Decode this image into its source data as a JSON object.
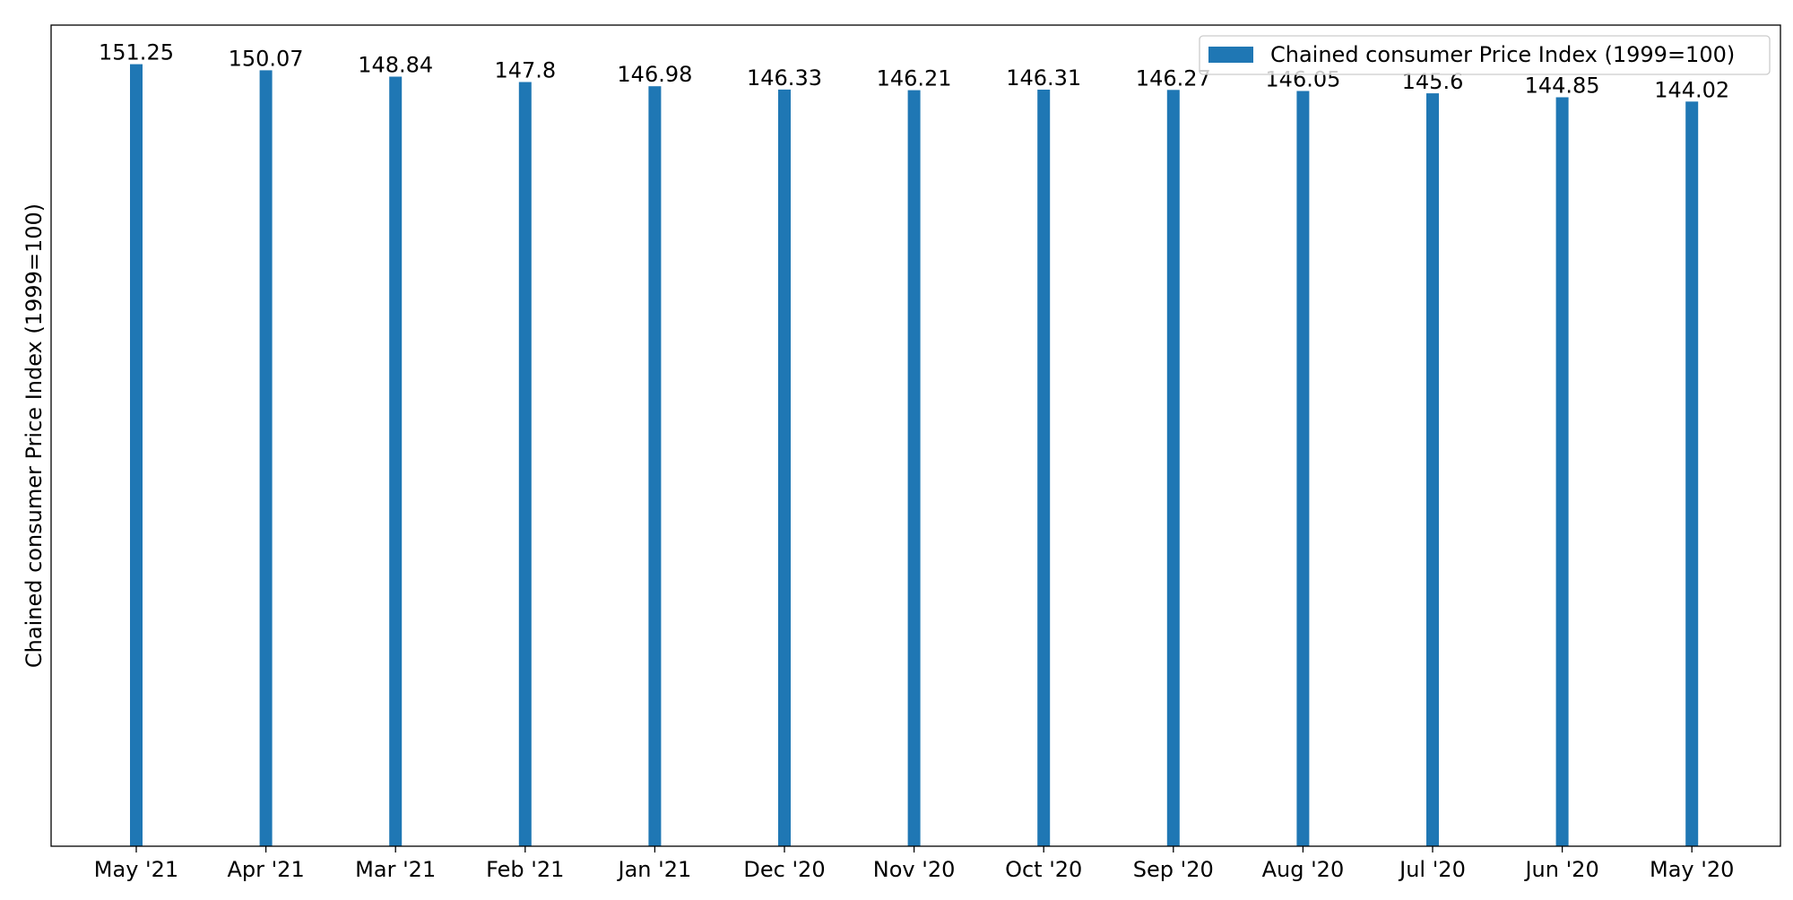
{
  "chart_data": {
    "type": "bar",
    "categories": [
      "May '21",
      "Apr '21",
      "Mar '21",
      "Feb '21",
      "Jan '21",
      "Dec '20",
      "Nov '20",
      "Oct '20",
      "Sep '20",
      "Aug '20",
      "Jul '20",
      "Jun '20",
      "May '20"
    ],
    "series": [
      {
        "name": "Chained consumer Price Index (1999=100)",
        "values": [
          151.25,
          150.07,
          148.84,
          147.8,
          146.98,
          146.33,
          146.21,
          146.31,
          146.27,
          146.05,
          145.6,
          144.85,
          144.02
        ],
        "color": "#1f77b4"
      }
    ],
    "title": "",
    "xlabel": "",
    "ylabel": "Chained consumer Price Index (1999=100)",
    "ylim": [
      0,
      158.8
    ],
    "grid": false,
    "legend": "top-right",
    "y_ticks_visible": false
  }
}
